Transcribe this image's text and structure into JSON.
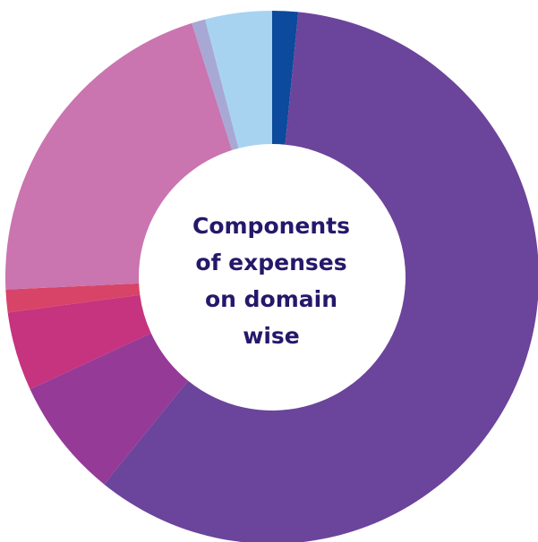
{
  "chart_data": {
    "type": "pie",
    "donut": true,
    "title_lines": [
      "Components",
      "of expenses",
      "on domain",
      "wise"
    ],
    "slices": [
      {
        "value": 1.7,
        "color": "#0b4a9c"
      },
      {
        "value": 64.5,
        "color": "#6b449b"
      },
      {
        "value": 7.9,
        "color": "#953a97"
      },
      {
        "value": 5.2,
        "color": "#c6337f"
      },
      {
        "value": 1.5,
        "color": "#d84468"
      },
      {
        "value": 22.7,
        "color": "#ca74b0"
      },
      {
        "value": 0.9,
        "color": "#a8a8d4"
      },
      {
        "value": 4.4,
        "color": "#a7d3f1"
      }
    ]
  }
}
